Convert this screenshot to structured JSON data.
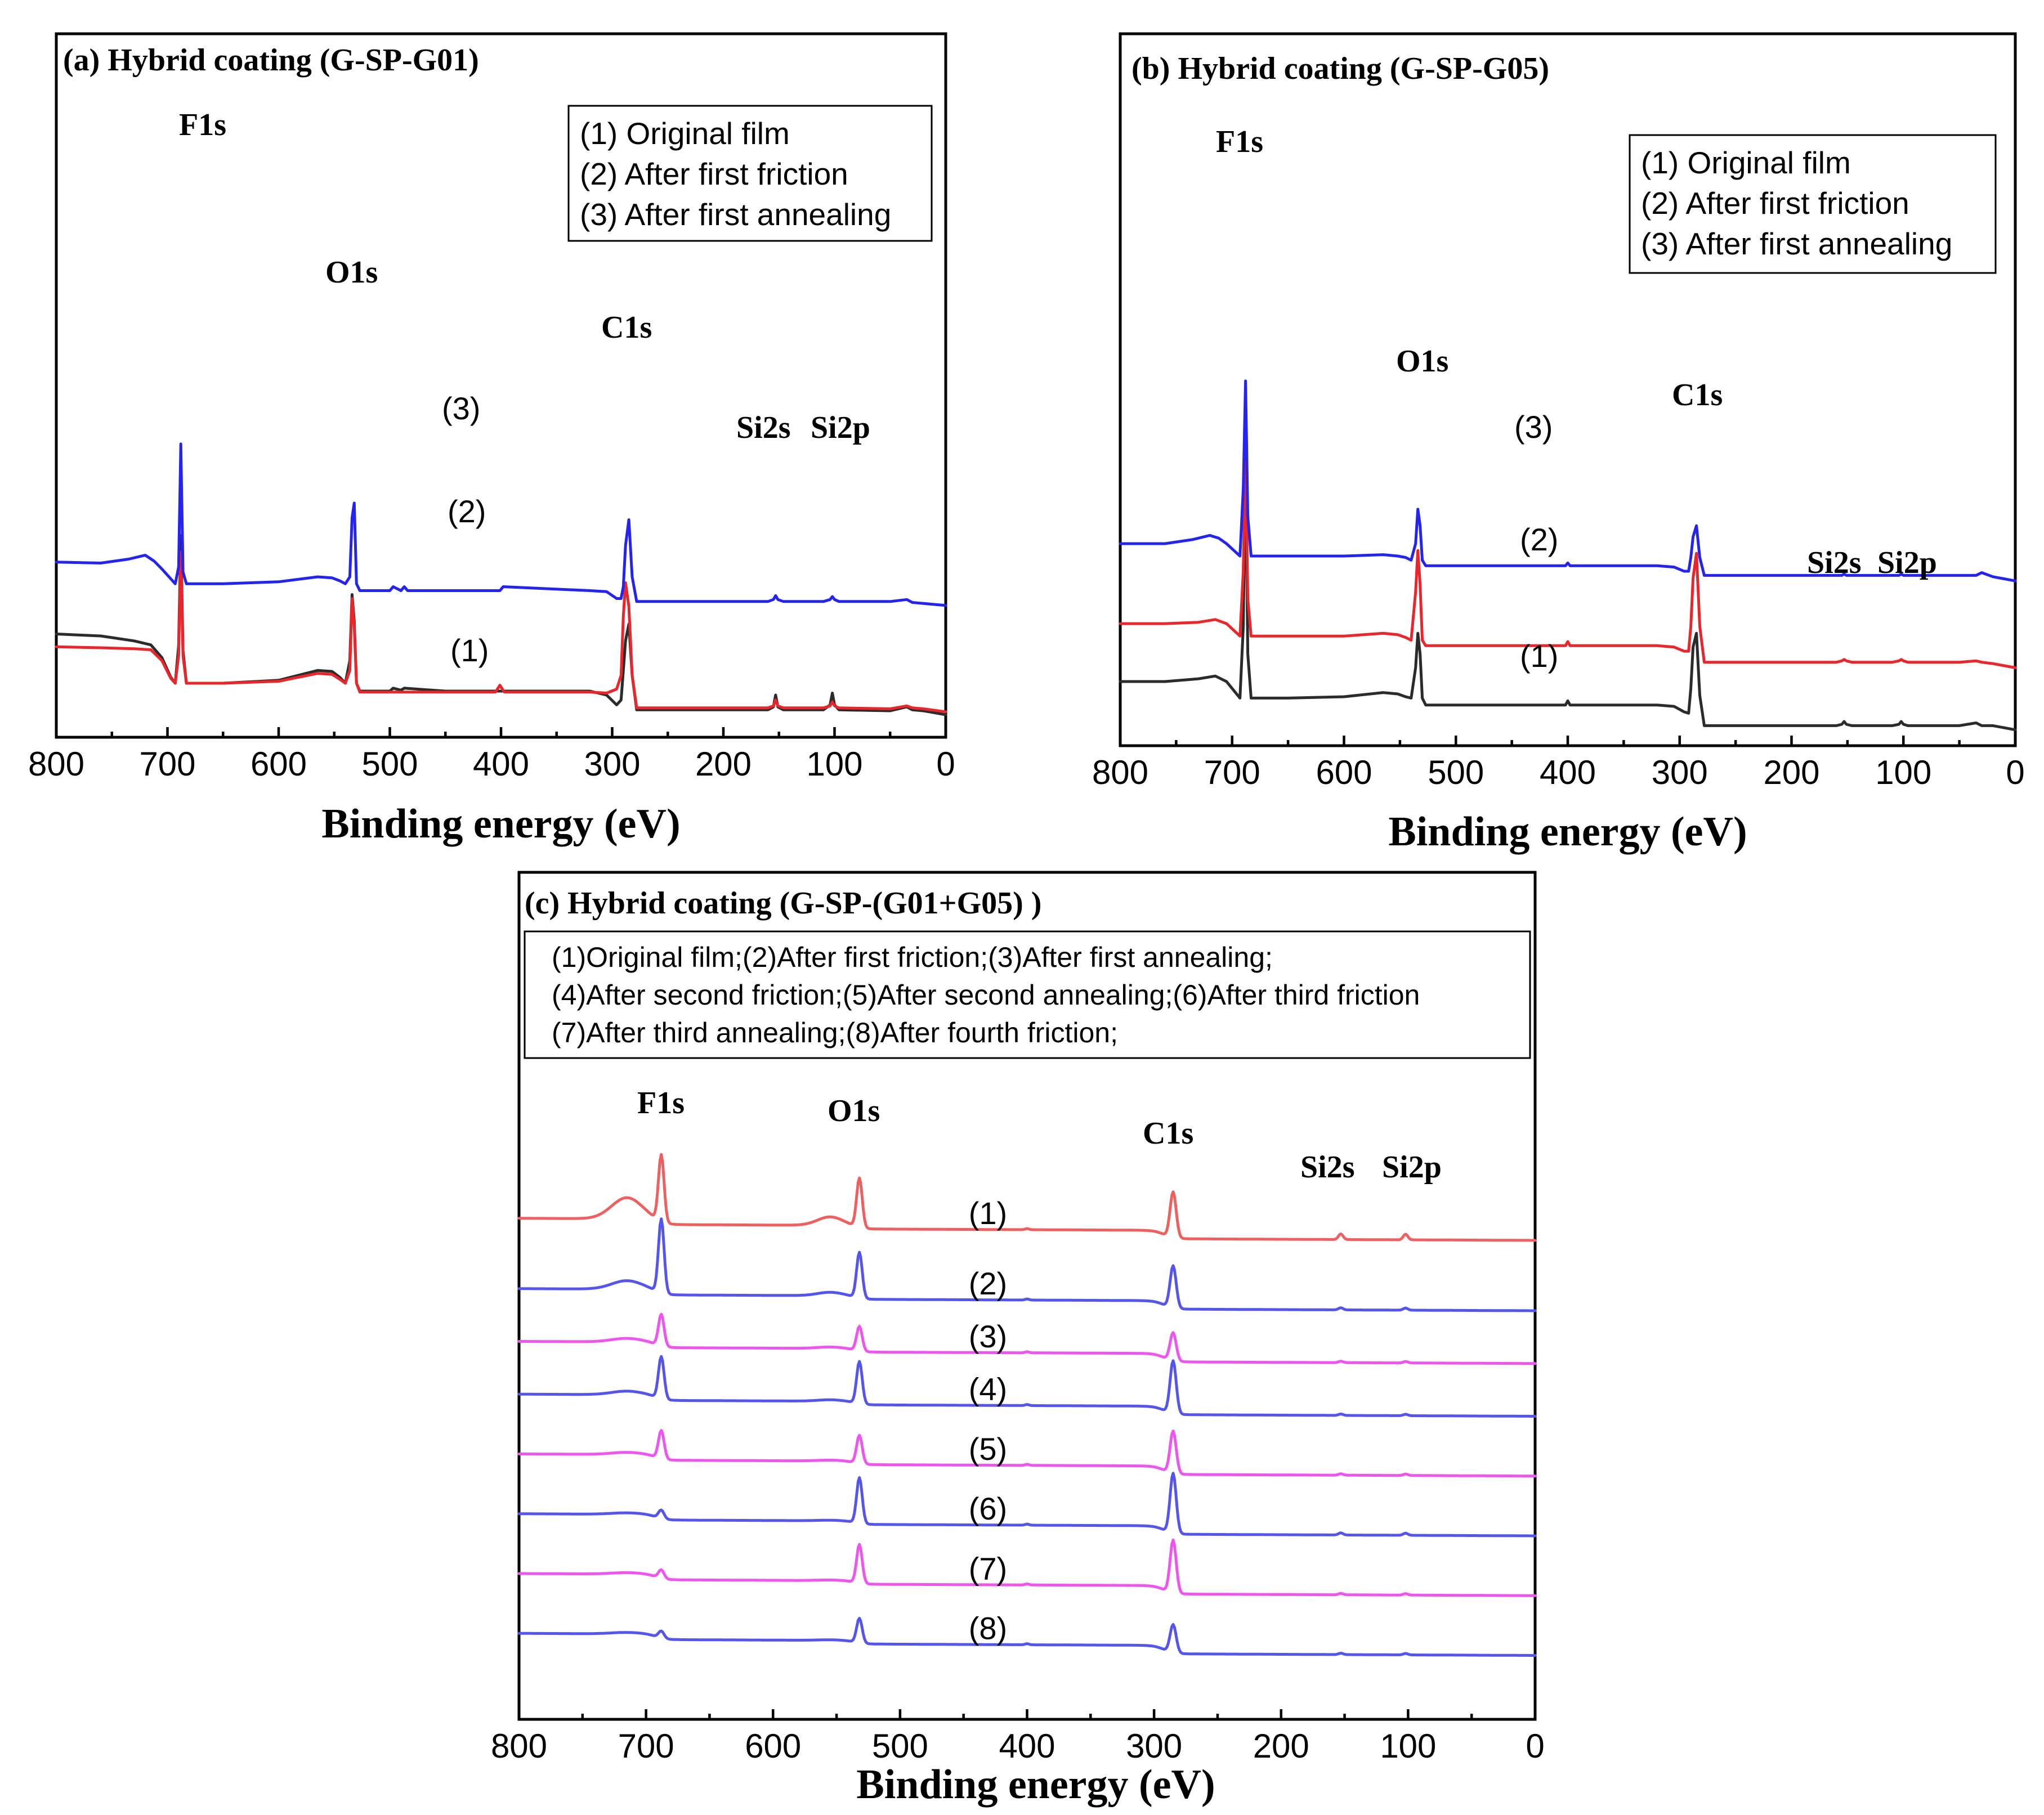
{
  "chart_data": [
    {
      "type": "line",
      "title": "(a) Hybrid coating (G-SP-G01)",
      "xlabel": "Binding energy (eV)",
      "ylabel": "",
      "xlim": [
        800,
        0
      ],
      "x_reversed": true,
      "xticks": [
        "800",
        "700",
        "600",
        "500",
        "400",
        "300",
        "200",
        "100",
        "0"
      ],
      "grid": false,
      "legend": {
        "position": "top-right",
        "entries": [
          "(1) Original film",
          "(2) After first friction",
          "(3) After first annealing"
        ]
      },
      "peak_labels": [
        {
          "text": "F1s",
          "x": 688
        },
        {
          "text": "O1s",
          "x": 532
        },
        {
          "text": "C1s",
          "x": 285
        },
        {
          "text": "Si2s",
          "x": 153
        },
        {
          "text": "Si2p",
          "x": 102
        }
      ],
      "series": [
        {
          "label": "(1)",
          "color": "#2b2b2b",
          "x": [
            800,
            760,
            730,
            715,
            705,
            697,
            693,
            690,
            688,
            686,
            683,
            650,
            600,
            565,
            552,
            545,
            540,
            536,
            534,
            532,
            530,
            527,
            500,
            497,
            490,
            487,
            450,
            400,
            320,
            305,
            296,
            292,
            290,
            288,
            285,
            282,
            278,
            250,
            200,
            160,
            155,
            153,
            151,
            146,
            110,
            104,
            102,
            100,
            96,
            50,
            35,
            30,
            20,
            0
          ],
          "y": [
            0.62,
            0.6,
            0.55,
            0.51,
            0.38,
            0.18,
            0.12,
            0.5,
            1.62,
            0.45,
            0.12,
            0.12,
            0.15,
            0.25,
            0.24,
            0.18,
            0.12,
            0.35,
            1.02,
            0.75,
            0.12,
            0.04,
            0.04,
            0.07,
            0.05,
            0.07,
            0.04,
            0.04,
            0.04,
            0.0,
            -0.1,
            -0.05,
            0.25,
            0.55,
            0.72,
            0.2,
            -0.15,
            -0.15,
            -0.15,
            -0.15,
            -0.12,
            0.0,
            -0.12,
            -0.15,
            -0.15,
            -0.1,
            0.02,
            -0.1,
            -0.15,
            -0.16,
            -0.12,
            -0.15,
            -0.16,
            -0.2
          ]
        },
        {
          "label": "(2)",
          "color": "#e8262b",
          "x": [
            800,
            760,
            730,
            715,
            705,
            697,
            693,
            690,
            688,
            686,
            683,
            650,
            600,
            565,
            552,
            545,
            540,
            536,
            534,
            532,
            530,
            527,
            500,
            405,
            401,
            397,
            320,
            305,
            296,
            292,
            290,
            288,
            285,
            282,
            278,
            250,
            200,
            160,
            155,
            153,
            151,
            146,
            110,
            104,
            102,
            100,
            96,
            50,
            35,
            30,
            20,
            0
          ],
          "y": [
            0.49,
            0.48,
            0.47,
            0.46,
            0.35,
            0.17,
            0.12,
            0.4,
            1.45,
            0.4,
            0.12,
            0.12,
            0.14,
            0.22,
            0.21,
            0.16,
            0.12,
            0.25,
            0.98,
            0.7,
            0.12,
            0.03,
            0.03,
            0.03,
            0.1,
            0.03,
            0.03,
            0.02,
            0.06,
            0.2,
            0.8,
            1.14,
            0.9,
            0.2,
            -0.13,
            -0.13,
            -0.13,
            -0.13,
            -0.11,
            -0.05,
            -0.11,
            -0.13,
            -0.13,
            -0.11,
            -0.07,
            -0.11,
            -0.13,
            -0.14,
            -0.11,
            -0.13,
            -0.14,
            -0.17
          ]
        },
        {
          "label": "(3)",
          "color": "#2424ee",
          "x": [
            800,
            760,
            735,
            720,
            712,
            705,
            697,
            693,
            690,
            688,
            686,
            683,
            650,
            600,
            565,
            552,
            545,
            540,
            536,
            534,
            532,
            530,
            527,
            500,
            497,
            490,
            487,
            484,
            450,
            401,
            398,
            320,
            305,
            296,
            292,
            290,
            288,
            285,
            282,
            278,
            250,
            200,
            160,
            155,
            153,
            151,
            146,
            110,
            104,
            102,
            100,
            96,
            50,
            35,
            30,
            20,
            0
          ],
          "y": [
            1.35,
            1.34,
            1.38,
            1.42,
            1.36,
            1.28,
            1.18,
            1.13,
            1.3,
            2.55,
            1.25,
            1.13,
            1.13,
            1.15,
            1.2,
            1.19,
            1.16,
            1.13,
            1.2,
            1.8,
            1.95,
            1.13,
            1.06,
            1.06,
            1.1,
            1.06,
            1.1,
            1.06,
            1.06,
            1.06,
            1.1,
            1.06,
            1.05,
            0.98,
            0.98,
            1.1,
            1.52,
            1.78,
            1.2,
            0.95,
            0.95,
            0.95,
            0.95,
            0.97,
            1.01,
            0.97,
            0.95,
            0.95,
            0.97,
            1.0,
            0.97,
            0.95,
            0.95,
            0.97,
            0.94,
            0.93,
            0.91
          ]
        }
      ]
    },
    {
      "type": "line",
      "title": "(b) Hybrid coating (G-SP-G05)",
      "xlabel": "Binding energy (eV)",
      "ylabel": "",
      "xlim": [
        800,
        0
      ],
      "x_reversed": true,
      "xticks": [
        "800",
        "700",
        "600",
        "500",
        "400",
        "300",
        "200",
        "100",
        "0"
      ],
      "grid": false,
      "legend": {
        "position": "top-right",
        "entries": [
          "(1) Original film",
          "(2) After first friction",
          "(3) After first annealing"
        ]
      },
      "peak_labels": [
        {
          "text": "F1s",
          "x": 688
        },
        {
          "text": "O1s",
          "x": 532
        },
        {
          "text": "C1s",
          "x": 285
        },
        {
          "text": "Si2s",
          "x": 153
        },
        {
          "text": "Si2p",
          "x": 102
        }
      ],
      "series": [
        {
          "label": "(1)",
          "color": "#2b2b2b",
          "x": [
            800,
            760,
            730,
            715,
            705,
            697,
            693,
            690,
            688,
            686,
            683,
            650,
            600,
            565,
            552,
            545,
            540,
            536,
            534,
            532,
            530,
            527,
            500,
            402,
            400,
            398,
            320,
            305,
            296,
            292,
            290,
            288,
            285,
            282,
            278,
            250,
            200,
            160,
            155,
            153,
            151,
            146,
            110,
            104,
            102,
            100,
            96,
            50,
            35,
            30,
            20,
            0
          ],
          "y": [
            0.2,
            0.2,
            0.22,
            0.24,
            0.2,
            0.12,
            0.08,
            0.6,
            1.87,
            0.4,
            0.08,
            0.08,
            0.09,
            0.12,
            0.11,
            0.09,
            0.08,
            0.3,
            0.55,
            0.4,
            0.08,
            0.03,
            0.03,
            0.03,
            0.06,
            0.03,
            0.03,
            0.02,
            -0.02,
            -0.03,
            0.15,
            0.45,
            0.55,
            0.1,
            -0.12,
            -0.12,
            -0.12,
            -0.12,
            -0.11,
            -0.09,
            -0.11,
            -0.12,
            -0.12,
            -0.11,
            -0.09,
            -0.11,
            -0.12,
            -0.12,
            -0.1,
            -0.12,
            -0.12,
            -0.15
          ]
        },
        {
          "label": "(2)",
          "color": "#e8262b",
          "x": [
            800,
            760,
            730,
            715,
            705,
            697,
            693,
            690,
            688,
            686,
            683,
            650,
            600,
            565,
            552,
            545,
            540,
            536,
            534,
            532,
            530,
            527,
            500,
            402,
            400,
            398,
            320,
            305,
            296,
            292,
            290,
            288,
            285,
            282,
            278,
            250,
            200,
            160,
            155,
            153,
            151,
            146,
            110,
            104,
            102,
            100,
            96,
            50,
            35,
            30,
            20,
            0
          ],
          "y": [
            0.62,
            0.62,
            0.63,
            0.65,
            0.62,
            0.56,
            0.53,
            1.0,
            1.9,
            0.8,
            0.53,
            0.53,
            0.53,
            0.55,
            0.54,
            0.52,
            0.5,
            0.85,
            1.15,
            0.9,
            0.5,
            0.46,
            0.46,
            0.46,
            0.49,
            0.46,
            0.46,
            0.45,
            0.42,
            0.42,
            0.6,
            0.95,
            1.13,
            0.6,
            0.34,
            0.34,
            0.34,
            0.34,
            0.35,
            0.36,
            0.35,
            0.34,
            0.34,
            0.35,
            0.36,
            0.35,
            0.34,
            0.34,
            0.35,
            0.34,
            0.33,
            0.3
          ]
        },
        {
          "label": "(3)",
          "color": "#2424ee",
          "x": [
            800,
            760,
            735,
            720,
            712,
            705,
            697,
            693,
            690,
            688,
            686,
            683,
            650,
            600,
            565,
            552,
            545,
            540,
            536,
            534,
            532,
            530,
            527,
            500,
            402,
            400,
            398,
            320,
            305,
            296,
            292,
            290,
            288,
            285,
            282,
            278,
            250,
            200,
            160,
            155,
            153,
            151,
            146,
            110,
            104,
            102,
            100,
            96,
            50,
            35,
            30,
            20,
            0
          ],
          "y": [
            1.2,
            1.2,
            1.23,
            1.26,
            1.24,
            1.2,
            1.14,
            1.11,
            1.6,
            2.38,
            1.4,
            1.11,
            1.11,
            1.11,
            1.12,
            1.11,
            1.1,
            1.08,
            1.2,
            1.45,
            1.33,
            1.08,
            1.04,
            1.04,
            1.04,
            1.06,
            1.04,
            1.04,
            1.03,
            1.0,
            1.0,
            1.1,
            1.25,
            1.33,
            1.1,
            0.97,
            0.97,
            0.97,
            0.97,
            0.97,
            0.98,
            0.97,
            0.97,
            0.97,
            0.97,
            0.98,
            0.97,
            0.97,
            0.97,
            0.97,
            0.99,
            0.96,
            0.93
          ]
        }
      ]
    },
    {
      "type": "line",
      "title": "(c) Hybrid coating (G-SP-(G01+G05) )",
      "xlabel": "Binding energy (eV)",
      "ylabel": "",
      "xlim": [
        800,
        0
      ],
      "x_reversed": true,
      "xticks": [
        "800",
        "700",
        "600",
        "500",
        "400",
        "300",
        "200",
        "100",
        "0"
      ],
      "grid": false,
      "legend": {
        "position": "top",
        "entries": [
          "(1)Original film;(2)After first friction;(3)After first annealing;",
          "(4)After second friction;(5)After second annealing;(6)After third friction",
          "(7)After third annealing;(8)After fourth friction;"
        ]
      },
      "peak_labels": [
        {
          "text": "F1s",
          "x": 688
        },
        {
          "text": "O1s",
          "x": 532
        },
        {
          "text": "C1s",
          "x": 285
        },
        {
          "text": "Si2s",
          "x": 153
        },
        {
          "text": "Si2p",
          "x": 102
        }
      ],
      "series": [
        {
          "label": "(1)",
          "color": "#ee6060",
          "offset": 7.0,
          "peaks": {
            "F1s": 0.95,
            "O1s": 0.7,
            "C1s": 0.65
          },
          "pre_edge": 0.3,
          "si": 0.08
        },
        {
          "label": "(2)",
          "color": "#5555ee",
          "offset": 6.0,
          "peaks": {
            "F1s": 1.05,
            "O1s": 0.65,
            "C1s": 0.6
          },
          "pre_edge": 0.12,
          "si": 0.03
        },
        {
          "label": "(3)",
          "color": "#ee55ee",
          "offset": 5.25,
          "peaks": {
            "F1s": 0.45,
            "O1s": 0.35,
            "C1s": 0.4
          },
          "pre_edge": 0.05,
          "si": 0.02
        },
        {
          "label": "(4)",
          "color": "#5555ee",
          "offset": 4.5,
          "peaks": {
            "F1s": 0.6,
            "O1s": 0.6,
            "C1s": 0.75
          },
          "pre_edge": 0.05,
          "si": 0.02
        },
        {
          "label": "(5)",
          "color": "#ee55ee",
          "offset": 3.65,
          "peaks": {
            "F1s": 0.4,
            "O1s": 0.4,
            "C1s": 0.6
          },
          "pre_edge": 0.03,
          "si": 0.02
        },
        {
          "label": "(6)",
          "color": "#5555ee",
          "offset": 2.8,
          "peaks": {
            "F1s": 0.12,
            "O1s": 0.65,
            "C1s": 0.85
          },
          "pre_edge": 0.02,
          "si": 0.03
        },
        {
          "label": "(7)",
          "color": "#ee55ee",
          "offset": 1.95,
          "peaks": {
            "F1s": 0.12,
            "O1s": 0.55,
            "C1s": 0.75
          },
          "pre_edge": 0.02,
          "si": 0.02
        },
        {
          "label": "(8)",
          "color": "#5555ee",
          "offset": 1.1,
          "peaks": {
            "F1s": 0.1,
            "O1s": 0.35,
            "C1s": 0.4
          },
          "pre_edge": 0.02,
          "si": 0.02
        }
      ]
    }
  ]
}
